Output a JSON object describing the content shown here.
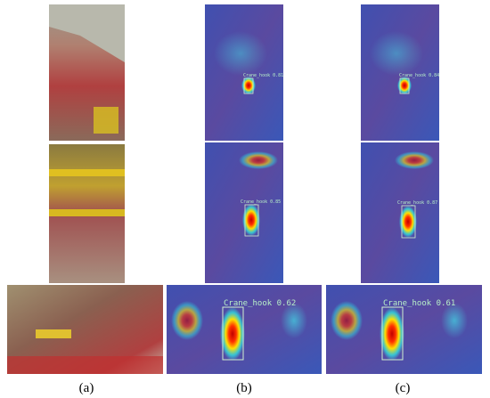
{
  "panel_labels": [
    "(a)",
    "(b)",
    "(c)"
  ],
  "detections": [
    [
      "Crane_hook 0.81",
      "Crane_hook 0.85",
      "Crane_hook 0.62"
    ],
    [
      "Crane_hook 0.84",
      "Crane_hook 0.87",
      "Crane_hook 0.61"
    ]
  ]
}
